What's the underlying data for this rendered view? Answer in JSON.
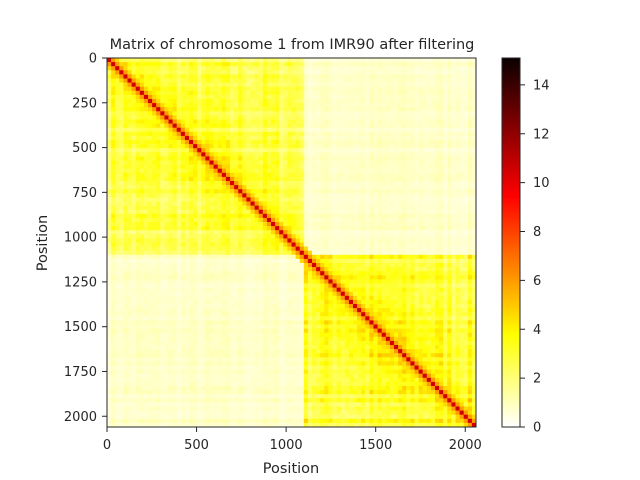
{
  "chart_data": {
    "type": "heatmap",
    "title": "Matrix of chromosome 1 from IMR90 after filtering",
    "xlabel": "Position",
    "ylabel": "Position",
    "xlim": [
      0,
      2060
    ],
    "ylim": [
      0,
      2060
    ],
    "x_ticks": [
      "0",
      "500",
      "1000",
      "1500",
      "2000"
    ],
    "y_ticks": [
      "0",
      "250",
      "500",
      "750",
      "1000",
      "1250",
      "1500",
      "1750",
      "2000"
    ],
    "colormap": "hot_r",
    "colorbar": {
      "range": [
        0,
        15.1
      ],
      "ticks": [
        "0",
        "2",
        "4",
        "6",
        "8",
        "10",
        "12",
        "14"
      ]
    },
    "domains": [
      {
        "start": 0,
        "end": 1110,
        "within_level": 2.6
      },
      {
        "start": 1110,
        "end": 2060,
        "within_level": 3.0
      }
    ],
    "between_domain_level": 0.8,
    "diagonal_peak": 10.5,
    "y_axis_inverted": true
  }
}
